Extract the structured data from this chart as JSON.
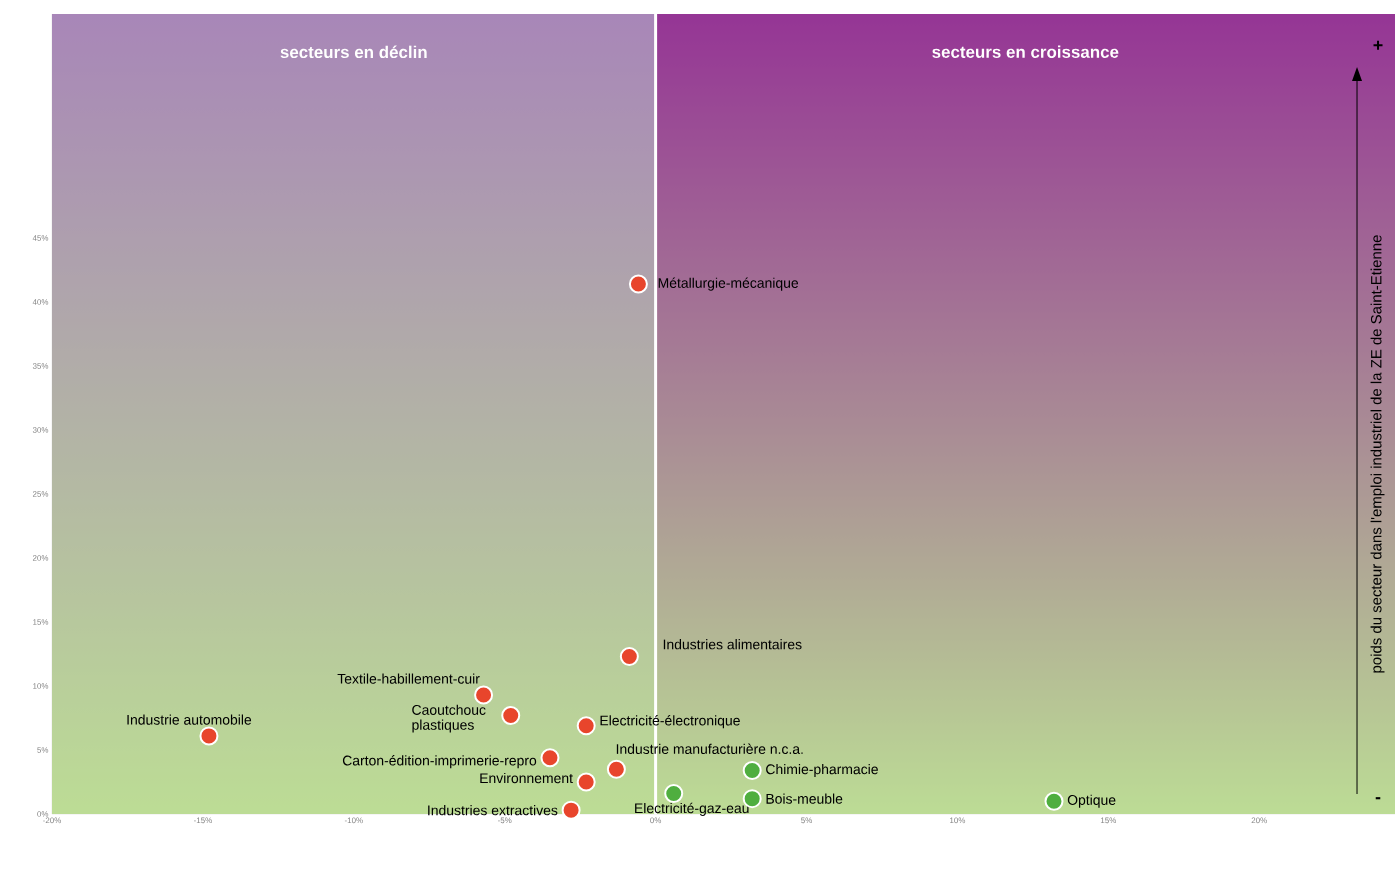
{
  "chart_data": {
    "type": "scatter",
    "ylabel": "poids du secteur dans l'emploi industriel de la ZE de Saint-Etienne",
    "xlim": [
      -20,
      24.5
    ],
    "ylim": [
      0,
      62.5
    ],
    "xticks": [
      {
        "value": -20,
        "label": "-20%"
      },
      {
        "value": -15,
        "label": "-15%"
      },
      {
        "value": -10,
        "label": "-10%"
      },
      {
        "value": -5,
        "label": "-5%"
      },
      {
        "value": 0,
        "label": "0%"
      },
      {
        "value": 5,
        "label": "5%"
      },
      {
        "value": 10,
        "label": "10%"
      },
      {
        "value": 15,
        "label": "15%"
      },
      {
        "value": 20,
        "label": "20%"
      }
    ],
    "yticks": [
      {
        "value": 0,
        "label": "0%"
      },
      {
        "value": 5,
        "label": "5%"
      },
      {
        "value": 10,
        "label": "10%"
      },
      {
        "value": 15,
        "label": "15%"
      },
      {
        "value": 20,
        "label": "20%"
      },
      {
        "value": 25,
        "label": "25%"
      },
      {
        "value": 30,
        "label": "30%"
      },
      {
        "value": 35,
        "label": "35%"
      },
      {
        "value": 40,
        "label": "40%"
      },
      {
        "value": 45,
        "label": "45%"
      }
    ],
    "marker": "circle",
    "series": [
      {
        "color": "#e8452c",
        "x": [
          -0.57,
          -0.87,
          -5.7,
          -4.8,
          -14.8,
          -2.3,
          -3.5,
          -1.3,
          -2.3,
          -2.8
        ],
        "values": [
          41.4,
          12.3,
          9.3,
          7.7,
          6.1,
          6.9,
          4.4,
          3.5,
          2.5,
          0.3
        ]
      },
      {
        "color": "#4fae3f",
        "x": [
          0.6,
          3.2,
          3.2,
          13.2
        ],
        "values": [
          1.6,
          3.4,
          1.2,
          1.0
        ]
      }
    ],
    "bands": [
      {
        "axis": "x",
        "from": -20,
        "to": 0,
        "label": "secteurs en déclin",
        "color": "#a886b8"
      },
      {
        "axis": "x",
        "from": 0,
        "to": 24.5,
        "label": "secteurs en croissance",
        "color": "#953595"
      }
    ],
    "ref_lines": [
      {
        "axis": "x",
        "value": 0,
        "color": "#ffffff"
      }
    ],
    "annotations": [
      {
        "text": "Métallurgie-mécanique",
        "x": -0.57,
        "y": 41.4
      },
      {
        "text": "Industries alimentaires",
        "x": -0.87,
        "y": 12.3
      },
      {
        "text": "Textile-habillement-cuir",
        "x": -5.7,
        "y": 9.3
      },
      {
        "text": "Caoutchouc plastiques",
        "x": -4.8,
        "y": 7.7
      },
      {
        "text": "Industrie automobile",
        "x": -14.8,
        "y": 6.1
      },
      {
        "text": "Electricité-électronique",
        "x": -2.3,
        "y": 6.9
      },
      {
        "text": "Carton-édition-imprimerie-repro",
        "x": -3.5,
        "y": 4.4
      },
      {
        "text": "Industrie manufacturière n.c.a.",
        "x": -1.3,
        "y": 3.5
      },
      {
        "text": "Environnement",
        "x": -2.3,
        "y": 2.5
      },
      {
        "text": "Industries extractives",
        "x": -2.8,
        "y": 0.3
      },
      {
        "text": "Electricité-gaz-eau",
        "x": 0.6,
        "y": 1.6
      },
      {
        "text": "Chimie-pharmacie",
        "x": 3.2,
        "y": 3.4
      },
      {
        "text": "Bois-meuble",
        "x": 3.2,
        "y": 1.2
      },
      {
        "text": "Optique",
        "x": 13.2,
        "y": 1.0
      },
      "+",
      "-"
    ]
  }
}
